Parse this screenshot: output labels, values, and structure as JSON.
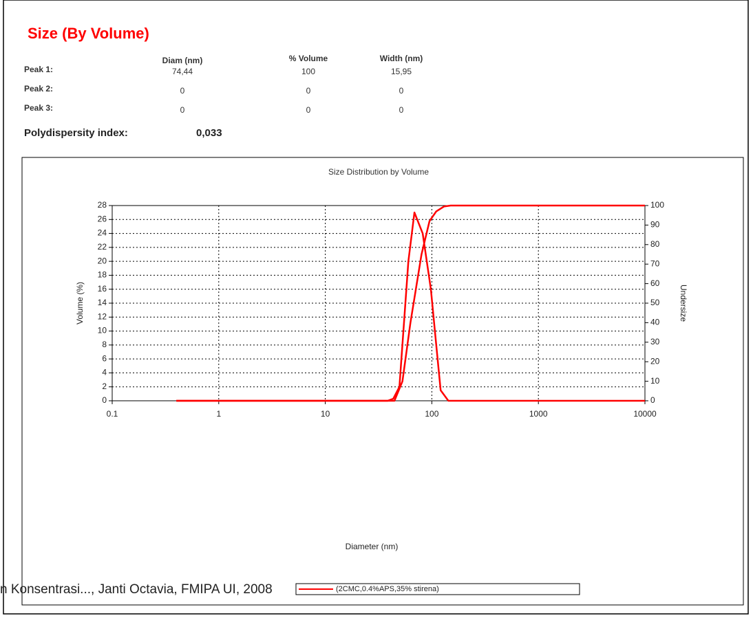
{
  "header": {
    "title": "Size (By Volume)"
  },
  "table": {
    "columns": [
      "Diam (nm)",
      "% Volume",
      "Width (nm)"
    ],
    "rows": [
      [
        "Peak 1:",
        "74,44",
        "100",
        "15,95"
      ],
      [
        "Peak 2:",
        "0",
        "0",
        "0"
      ],
      [
        "Peak 3:",
        "0",
        "0",
        "0"
      ]
    ]
  },
  "pdi": {
    "label": "Polydispersity index:",
    "value": "0,033"
  },
  "footer": "n Konsentrasi..., Janti Octavia, FMIPA UI, 2008",
  "chart_data": {
    "type": "line",
    "title": "Size Distribution by Volume",
    "xlabel": "Diameter (nm)",
    "ylabel": "Volume (%)",
    "y2label": "Undersize",
    "xscale": "log",
    "xlim": [
      0.1,
      10000
    ],
    "xticks": [
      0.1,
      1,
      10,
      100,
      1000,
      10000
    ],
    "ylim": [
      0,
      28
    ],
    "yticks": [
      0,
      2,
      4,
      6,
      8,
      10,
      12,
      14,
      16,
      18,
      20,
      22,
      24,
      26,
      28
    ],
    "y2lim": [
      0,
      100
    ],
    "y2ticks": [
      0,
      10,
      20,
      30,
      40,
      50,
      60,
      70,
      80,
      90,
      100
    ],
    "grid": true,
    "series": [
      {
        "name": "(2CMC,0.4%APS,35% stirena)",
        "color": "#ff0000",
        "x": [
          0.4,
          38.5,
          43.5,
          49.6,
          60.2,
          68.6,
          82,
          98,
          110,
          121,
          143,
          10000
        ],
        "values": [
          0,
          0,
          0.3,
          2,
          20,
          27,
          24,
          16,
          8,
          1.5,
          0,
          0
        ]
      },
      {
        "color": "#ff0000",
        "axis": "y2",
        "x": [
          0.4,
          44.6,
          53,
          63,
          80,
          95,
          110,
          130,
          150,
          10000
        ],
        "values": [
          0,
          0,
          10,
          40,
          75,
          92,
          97,
          99.5,
          100,
          100
        ]
      }
    ]
  }
}
